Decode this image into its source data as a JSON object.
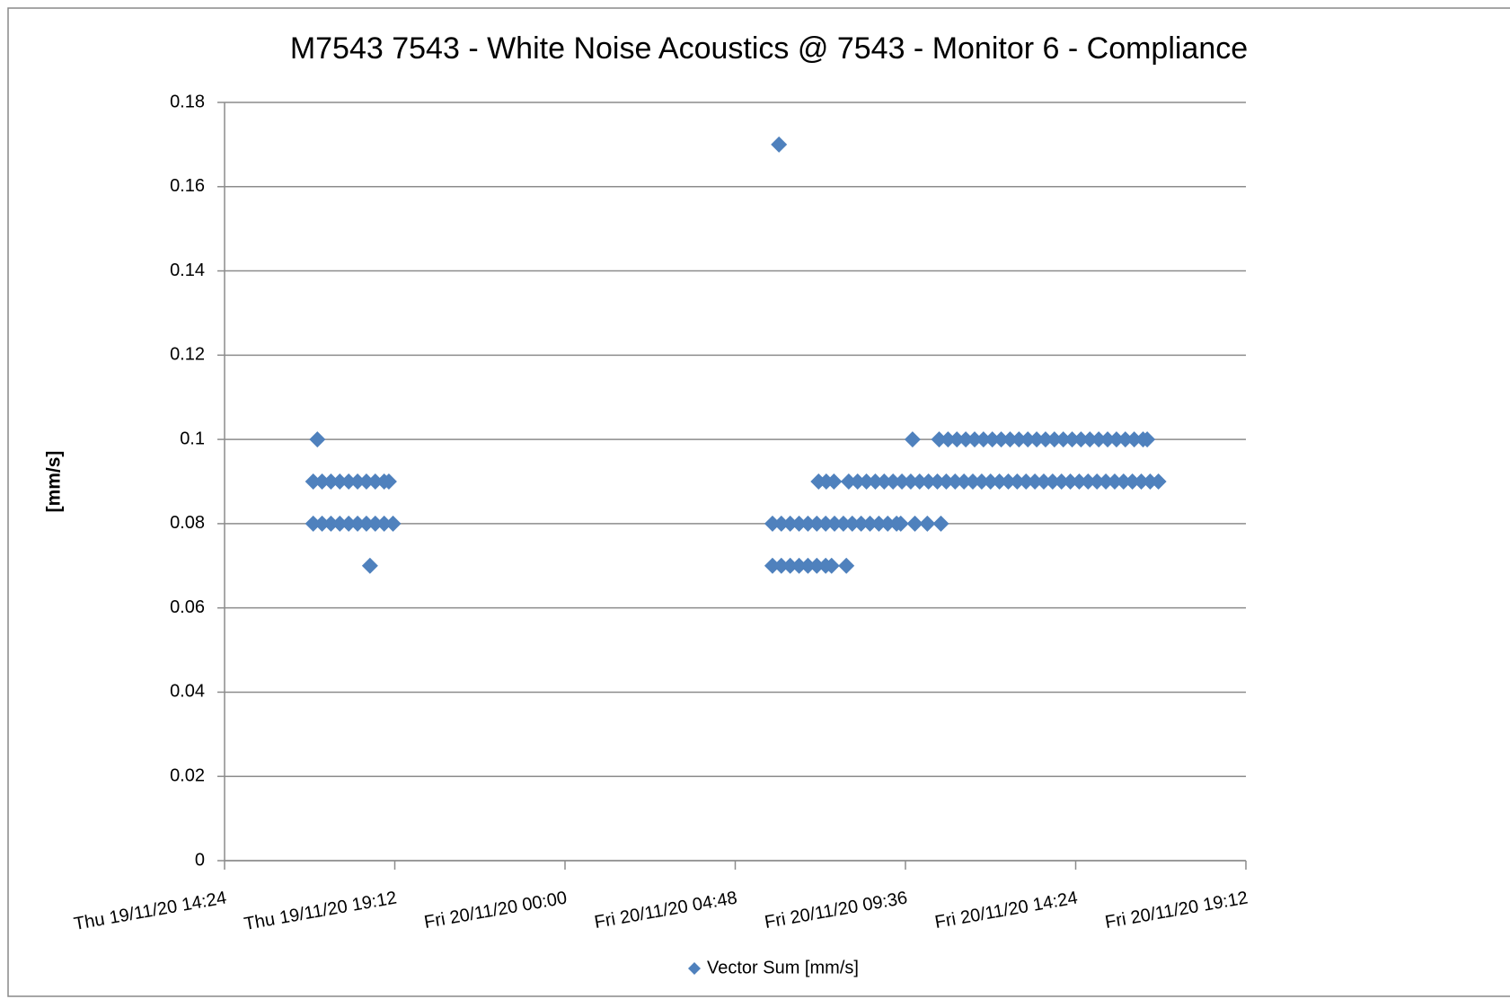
{
  "chart_data": {
    "type": "scatter",
    "title": "M7543 7543 - White Noise Acoustics @ 7543 - Monitor 6  - Compliance",
    "y_label": "[mm/s]",
    "series": [
      {
        "name": "Vector Sum [mm/s]",
        "color": "#4f81bd",
        "x": [
          "2020-11-19 17:01",
          "2020-11-19 16:54",
          "2020-11-19 17:09",
          "2020-11-19 17:24",
          "2020-11-19 17:39",
          "2020-11-19 17:54",
          "2020-11-19 18:09",
          "2020-11-19 18:24",
          "2020-11-19 18:39",
          "2020-11-19 18:54",
          "2020-11-19 19:02",
          "2020-11-19 16:54",
          "2020-11-19 17:09",
          "2020-11-19 17:24",
          "2020-11-19 17:39",
          "2020-11-19 17:54",
          "2020-11-19 18:09",
          "2020-11-19 18:24",
          "2020-11-19 18:39",
          "2020-11-19 18:54",
          "2020-11-19 19:09",
          "2020-11-19 18:30",
          "2020-11-20 06:02",
          "2020-11-20 05:51",
          "2020-11-20 06:06",
          "2020-11-20 06:21",
          "2020-11-20 06:36",
          "2020-11-20 06:51",
          "2020-11-20 07:06",
          "2020-11-20 07:21",
          "2020-11-20 07:36",
          "2020-11-20 07:51",
          "2020-11-20 08:06",
          "2020-11-20 08:21",
          "2020-11-20 08:36",
          "2020-11-20 08:51",
          "2020-11-20 09:06",
          "2020-11-20 09:21",
          "2020-11-20 09:28",
          "2020-11-20 09:52",
          "2020-11-20 10:13",
          "2020-11-20 10:36",
          "2020-11-20 05:51",
          "2020-11-20 06:06",
          "2020-11-20 06:21",
          "2020-11-20 06:36",
          "2020-11-20 06:51",
          "2020-11-20 07:06",
          "2020-11-20 07:21",
          "2020-11-20 07:31",
          "2020-11-20 07:56",
          "2020-11-20 07:09",
          "2020-11-20 07:22",
          "2020-11-20 07:35",
          "2020-11-20 08:00",
          "2020-11-20 08:15",
          "2020-11-20 08:30",
          "2020-11-20 08:45",
          "2020-11-20 09:00",
          "2020-11-20 09:15",
          "2020-11-20 09:30",
          "2020-11-20 09:45",
          "2020-11-20 10:00",
          "2020-11-20 10:15",
          "2020-11-20 10:30",
          "2020-11-20 10:45",
          "2020-11-20 11:00",
          "2020-11-20 11:15",
          "2020-11-20 11:30",
          "2020-11-20 11:45",
          "2020-11-20 12:00",
          "2020-11-20 12:15",
          "2020-11-20 12:30",
          "2020-11-20 12:45",
          "2020-11-20 13:00",
          "2020-11-20 13:15",
          "2020-11-20 13:30",
          "2020-11-20 13:45",
          "2020-11-20 14:00",
          "2020-11-20 14:15",
          "2020-11-20 14:30",
          "2020-11-20 14:45",
          "2020-11-20 15:00",
          "2020-11-20 15:15",
          "2020-11-20 15:30",
          "2020-11-20 15:45",
          "2020-11-20 16:00",
          "2020-11-20 16:15",
          "2020-11-20 16:30",
          "2020-11-20 16:44",
          "2020-11-20 09:48",
          "2020-11-20 10:33",
          "2020-11-20 10:48",
          "2020-11-20 11:03",
          "2020-11-20 11:18",
          "2020-11-20 11:33",
          "2020-11-20 11:48",
          "2020-11-20 12:03",
          "2020-11-20 12:18",
          "2020-11-20 12:33",
          "2020-11-20 12:48",
          "2020-11-20 13:03",
          "2020-11-20 13:18",
          "2020-11-20 13:33",
          "2020-11-20 13:48",
          "2020-11-20 14:03",
          "2020-11-20 14:18",
          "2020-11-20 14:33",
          "2020-11-20 14:48",
          "2020-11-20 15:03",
          "2020-11-20 15:18",
          "2020-11-20 15:33",
          "2020-11-20 15:48",
          "2020-11-20 16:03",
          "2020-11-20 16:18",
          "2020-11-20 16:25"
        ],
        "values": [
          0.1,
          0.09,
          0.09,
          0.09,
          0.09,
          0.09,
          0.09,
          0.09,
          0.09,
          0.09,
          0.09,
          0.08,
          0.08,
          0.08,
          0.08,
          0.08,
          0.08,
          0.08,
          0.08,
          0.08,
          0.08,
          0.07,
          0.17,
          0.08,
          0.08,
          0.08,
          0.08,
          0.08,
          0.08,
          0.08,
          0.08,
          0.08,
          0.08,
          0.08,
          0.08,
          0.08,
          0.08,
          0.08,
          0.08,
          0.08,
          0.08,
          0.08,
          0.07,
          0.07,
          0.07,
          0.07,
          0.07,
          0.07,
          0.07,
          0.07,
          0.07,
          0.09,
          0.09,
          0.09,
          0.09,
          0.09,
          0.09,
          0.09,
          0.09,
          0.09,
          0.09,
          0.09,
          0.09,
          0.09,
          0.09,
          0.09,
          0.09,
          0.09,
          0.09,
          0.09,
          0.09,
          0.09,
          0.09,
          0.09,
          0.09,
          0.09,
          0.09,
          0.09,
          0.09,
          0.09,
          0.09,
          0.09,
          0.09,
          0.09,
          0.09,
          0.09,
          0.09,
          0.09,
          0.09,
          0.09,
          0.1,
          0.1,
          0.1,
          0.1,
          0.1,
          0.1,
          0.1,
          0.1,
          0.1,
          0.1,
          0.1,
          0.1,
          0.1,
          0.1,
          0.1,
          0.1,
          0.1,
          0.1,
          0.1,
          0.1,
          0.1,
          0.1,
          0.1,
          0.1,
          0.1,
          0.1
        ]
      }
    ],
    "xlim": [
      "2020-11-19 14:24",
      "2020-11-20 19:12"
    ],
    "xticks": [
      {
        "value": "2020-11-19 14:24",
        "label": "Thu 19/11/20 14:24"
      },
      {
        "value": "2020-11-19 19:12",
        "label": "Thu 19/11/20 19:12"
      },
      {
        "value": "2020-11-20 00:00",
        "label": "Fri 20/11/20 00:00"
      },
      {
        "value": "2020-11-20 04:48",
        "label": "Fri 20/11/20 04:48"
      },
      {
        "value": "2020-11-20 09:36",
        "label": "Fri 20/11/20 09:36"
      },
      {
        "value": "2020-11-20 14:24",
        "label": "Fri 20/11/20 14:24"
      },
      {
        "value": "2020-11-20 19:12",
        "label": "Fri 20/11/20 19:12"
      }
    ],
    "ylim": [
      0,
      0.18
    ],
    "yticks": [
      0,
      0.02,
      0.04,
      0.06,
      0.08,
      0.1,
      0.12,
      0.14,
      0.16,
      0.18
    ],
    "grid": true,
    "legend": "bottom"
  }
}
